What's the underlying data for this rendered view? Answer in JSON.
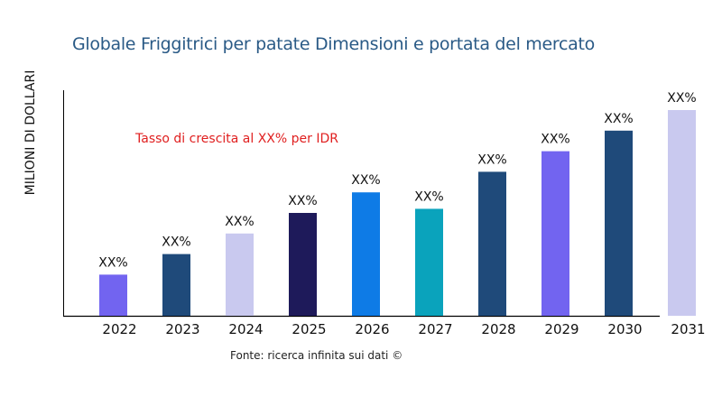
{
  "chart_data": {
    "type": "bar",
    "title": "Globale Friggitrici per patate Dimensioni e portata del mercato",
    "ylabel": "MILIONI DI DOLLARI",
    "xlabel": "",
    "annotation": "Tasso di crescita al XX% per IDR",
    "source": "Fonte: ricerca infinita sui dati ©",
    "categories": [
      "2022",
      "2023",
      "2024",
      "2025",
      "2026",
      "2027",
      "2028",
      "2029",
      "2030",
      "2031"
    ],
    "values": [
      20,
      30,
      40,
      50,
      60,
      52,
      70,
      80,
      90,
      100
    ],
    "data_labels": [
      "XX%",
      "XX%",
      "XX%",
      "XX%",
      "XX%",
      "XX%",
      "XX%",
      "XX%",
      "XX%",
      "XX%"
    ],
    "colors": [
      "#7264f0",
      "#1f4a7a",
      "#c9c9ef",
      "#1e1a5a",
      "#0e7be6",
      "#0aa3bc",
      "#1f4a7a",
      "#7264f0",
      "#1f4a7a",
      "#c9c9ef"
    ],
    "ylim": [
      0,
      100
    ],
    "grid": false,
    "legend": "none"
  }
}
